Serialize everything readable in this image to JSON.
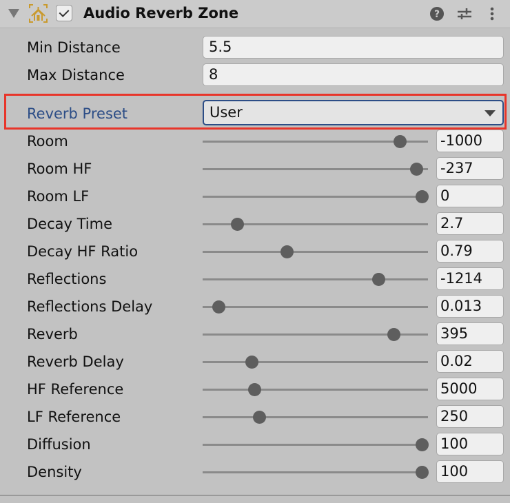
{
  "header": {
    "title": "Audio Reverb Zone",
    "enabled": true,
    "icons": [
      "foldout-triangle-icon",
      "audio-reverb-zone-icon",
      "help-icon",
      "preset-sliders-icon",
      "more-vert-icon"
    ]
  },
  "fields": [
    {
      "label": "Min Distance",
      "value": "5.5"
    },
    {
      "label": "Max Distance",
      "value": "8"
    }
  ],
  "preset": {
    "label": "Reverb Preset",
    "value": "User",
    "label_color": "#2c4d86",
    "highlight_color": "#e8352a"
  },
  "sliders": [
    {
      "label": "Room",
      "value": "-1000",
      "fraction": 0.897
    },
    {
      "label": "Room HF",
      "value": "-237",
      "fraction": 0.974
    },
    {
      "label": "Room LF",
      "value": "0",
      "fraction": 1.0
    },
    {
      "label": "Decay Time",
      "value": "2.7",
      "fraction": 0.135
    },
    {
      "label": "Decay HF Ratio",
      "value": "0.79",
      "fraction": 0.368
    },
    {
      "label": "Reflections",
      "value": "-1214",
      "fraction": 0.797
    },
    {
      "label": "Reflections Delay",
      "value": "0.013",
      "fraction": 0.048
    },
    {
      "label": "Reverb",
      "value": "395",
      "fraction": 0.868
    },
    {
      "label": "Reverb Delay",
      "value": "0.02",
      "fraction": 0.203
    },
    {
      "label": "HF Reference",
      "value": "5000",
      "fraction": 0.216
    },
    {
      "label": "LF Reference",
      "value": "250",
      "fraction": 0.239
    },
    {
      "label": "Diffusion",
      "value": "100",
      "fraction": 1.0
    },
    {
      "label": "Density",
      "value": "100",
      "fraction": 1.0
    }
  ]
}
